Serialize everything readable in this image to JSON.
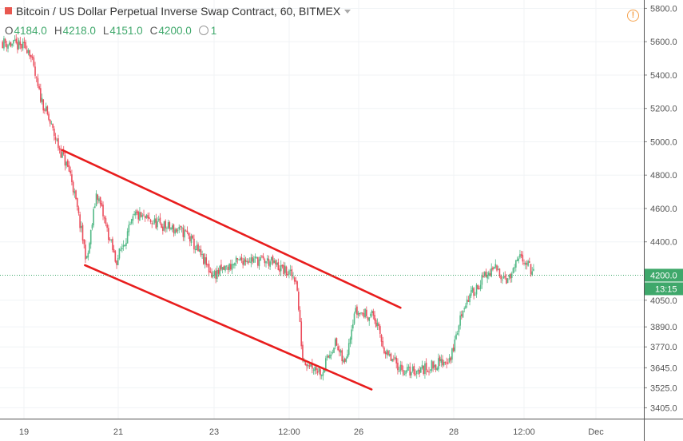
{
  "header": {
    "title": "Bitcoin / US Dollar Perpetual Inverse Swap Contract, 60, BITMEX",
    "o_label": "O",
    "o": "4184.0",
    "h_label": "H",
    "h": "4218.0",
    "l_label": "L",
    "l": "4151.0",
    "c_label": "C",
    "c": "4200.0",
    "indicator_count": "1"
  },
  "colors": {
    "up": "#53b987",
    "down": "#eb4d5c",
    "trendline": "#e81d1d",
    "price_line": "#3fa86b",
    "axis_badge": "#3fa86b"
  },
  "icons": {
    "symbol": "red-square-icon",
    "alerts": "warning-icon",
    "indicators": "clock-icon"
  },
  "chart_data": {
    "type": "candlestick",
    "ylim": [
      3340,
      5850
    ],
    "y_ticks": [
      "5800.0",
      "5600.0",
      "5400.0",
      "5200.0",
      "5000.0",
      "4800.0",
      "4600.0",
      "4400.0",
      "4050.0",
      "3890.0",
      "3770.0",
      "3645.0",
      "3525.0",
      "3405.0"
    ],
    "x_tick_labels": [
      "19",
      "21",
      "23",
      "12:00",
      "26",
      "28",
      "12:00",
      "Dec"
    ],
    "last_price": "4200.0",
    "countdown": "13:15",
    "price_path": [
      [
        0,
        5600
      ],
      [
        0.045,
        5560
      ],
      [
        0.06,
        5300
      ],
      [
        0.09,
        4980
      ],
      [
        0.11,
        4800
      ],
      [
        0.135,
        4280
      ],
      [
        0.15,
        4700
      ],
      [
        0.18,
        4280
      ],
      [
        0.21,
        4560
      ],
      [
        0.25,
        4500
      ],
      [
        0.29,
        4450
      ],
      [
        0.33,
        4200
      ],
      [
        0.38,
        4300
      ],
      [
        0.42,
        4280
      ],
      [
        0.46,
        4180
      ],
      [
        0.47,
        3700
      ],
      [
        0.5,
        3620
      ],
      [
        0.52,
        3800
      ],
      [
        0.535,
        3660
      ],
      [
        0.55,
        3980
      ],
      [
        0.58,
        3960
      ],
      [
        0.6,
        3720
      ],
      [
        0.63,
        3620
      ],
      [
        0.66,
        3640
      ],
      [
        0.7,
        3700
      ],
      [
        0.72,
        4020
      ],
      [
        0.75,
        4180
      ],
      [
        0.77,
        4240
      ],
      [
        0.79,
        4170
      ],
      [
        0.81,
        4320
      ],
      [
        0.83,
        4200
      ]
    ],
    "trendlines": [
      {
        "name": "upper",
        "from": [
          0.097,
          4950
        ],
        "to": [
          0.622,
          4005
        ]
      },
      {
        "name": "lower",
        "from": [
          0.132,
          4260
        ],
        "to": [
          0.577,
          3515
        ]
      }
    ]
  }
}
